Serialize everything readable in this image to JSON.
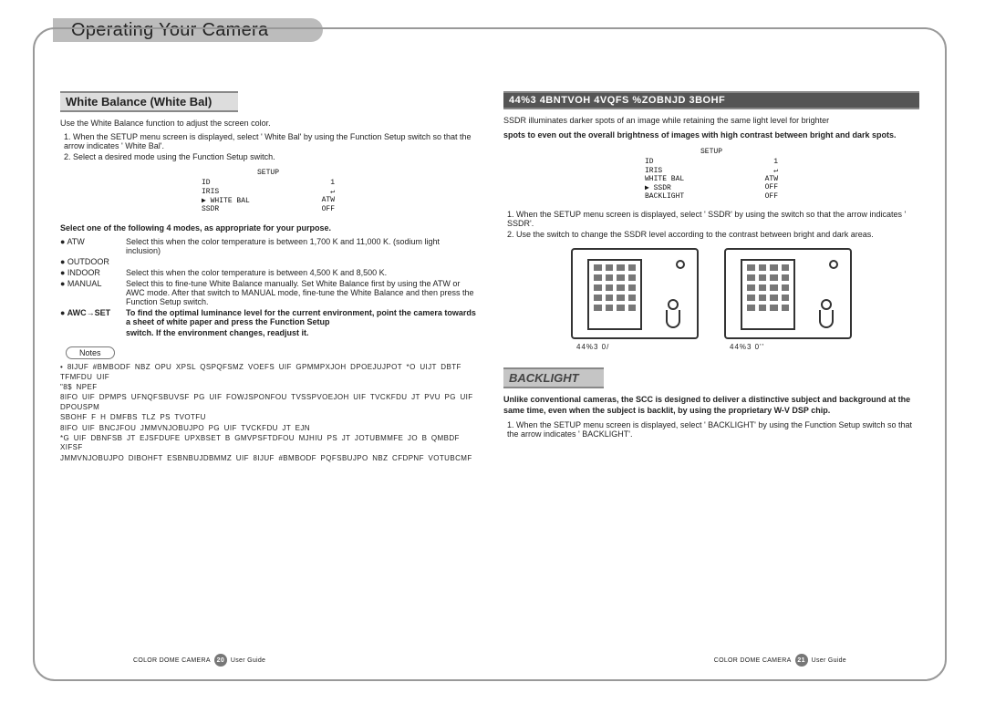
{
  "page_title": "Operating Your Camera",
  "left": {
    "section_title": "White Balance (White Bal)",
    "intro": "Use the White Balance function to adjust the screen color.",
    "steps": [
      "1. When the SETUP menu screen is displayed, select ' White Bal' by using the Function Setup switch so that the arrow indicates ' White Bal'.",
      "2. Select a desired mode using the Function Setup switch."
    ],
    "osd": {
      "title": "SETUP",
      "rows": [
        {
          "l": "ID",
          "r": "1"
        },
        {
          "l": "IRIS",
          "r": "↵"
        },
        {
          "l": "▶ WHITE BAL",
          "r": "ATW"
        },
        {
          "l": "SSDR",
          "r": "OFF"
        }
      ]
    },
    "options_intro": "Select one of the following 4 modes, as appropriate for your purpose.",
    "options": [
      {
        "name": "● ATW",
        "desc": "Select this when the color temperature is between 1,700 K and 11,000 K. (sodium light inclusion)"
      },
      {
        "name": "● OUTDOOR",
        "desc": ""
      },
      {
        "name": "● INDOOR",
        "desc": "Select this when the color temperature is between 4,500 K and 8,500 K."
      },
      {
        "name": "● MANUAL",
        "desc": "Select this to fine-tune White Balance manually. Set White Balance first by using the ATW or AWC mode. After that switch to MANUAL mode, fine-tune the White Balance and then press the Function Setup switch."
      }
    ],
    "awc": {
      "name": "● AWC→SET",
      "desc": "To find the optimal luminance level for the current environment, point the camera towards a sheet of white paper and press the Function Setup"
    },
    "switch_line": "switch. If the environment changes, readjust it.",
    "notes_label": "Notes",
    "notes_lines": [
      "• 8IJUF #BMBODF NBZ OPU XPSL QSPQFSMZ VOEFS UIF GPMMPXJOH DPOEJUJPOT  *O UIJT DBTF TFMFDU UIF",
      "\"8$ NPEF",
      "  8IFO UIF DPMPS UFNQFSBUVSF PG UIF FOWJSPONFOU TVSSPVOEJOH UIF TVCKFDU JT PVU PG UIF DPOUSPM",
      "  SBOHF F H  DMFBS TLZ PS TVOTFU",
      "  8IFO UIF BNCJFOU JMMVNJOBUJPO PG UIF TVCKFDU JT EJN",
      "  *G UIF DBNFSB JT EJSFDUFE UPXBSET B GMVPSFTDFOU MJHIU PS JT JOTUBMMFE JO B QMBDF XIFSF",
      "  JMMVNJOBUJPO DIBOHFT ESBNBUJDBMMZ  UIF 8IJUF #BMBODF PQFSBUJPO NBZ CFDPNF VOTUBCMF"
    ]
  },
  "right": {
    "ssdr_title": "44%3 4BNTVOH 4VQFS %ZOBNJD 3BOHF",
    "ssdr_intro1": "SSDR illuminates darker spots of an image while retaining the same light level for brighter",
    "ssdr_intro2": "spots to even out the overall brightness of images with high contrast between bright and dark spots.",
    "osd": {
      "title": "SETUP",
      "rows": [
        {
          "l": "ID",
          "r": "1"
        },
        {
          "l": "IRIS",
          "r": "↵"
        },
        {
          "l": "WHITE BAL",
          "r": "ATW"
        },
        {
          "l": "▶ SSDR",
          "r": "OFF"
        },
        {
          "l": "BACKLIGHT",
          "r": "OFF"
        }
      ]
    },
    "ssdr_steps": [
      "1. When the SETUP menu screen is displayed, select ' SSDR' by using the switch so that the arrow indicates ' SSDR'.",
      "2. Use the switch to change the SSDR level according to the contrast between bright and dark areas."
    ],
    "diag_labels": [
      "44%3 0/",
      "44%3 0''"
    ],
    "backlight_title": "BACKLIGHT",
    "backlight_p1": "Unlike conventional cameras, the SCC is designed to deliver a distinctive subject and background at the same time, even when the subject is backlit, by using the proprietary W-V DSP chip.",
    "backlight_step": "1. When the SETUP menu screen is displayed, select ' BACKLIGHT' by using the Function Setup switch so that the arrow indicates ' BACKLIGHT'."
  },
  "footer": {
    "product": "COLOR DOME CAMERA",
    "guide": "User Guide",
    "page_left": "20",
    "page_right": "21"
  }
}
